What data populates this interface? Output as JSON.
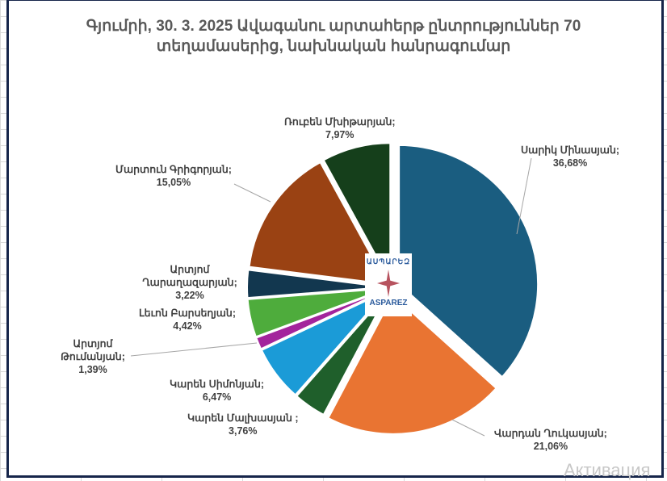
{
  "chart_data": {
    "type": "pie",
    "title": "Գյումրի, 30. 3. 2025 Ավագանու արտահերթ ընտրություններ 70 տեղամասերից, նախնական հանրագումար",
    "slices": [
      {
        "name": "Սարիկ Մինասյան",
        "value": 36.68,
        "label": "36,68%",
        "color": "#1a5d80"
      },
      {
        "name": "Վարդան Ղուկասյան",
        "value": 21.06,
        "label": "21,06%",
        "color": "#e97432"
      },
      {
        "name": "Կարեն Մալխասյան ",
        "value": 3.76,
        "label": "3,76%",
        "color": "#1f5f2b"
      },
      {
        "name": "Կարեն Սիմոնյան",
        "value": 6.47,
        "label": "6,47%",
        "color": "#1b9bd7"
      },
      {
        "name": "Արտյոմ Թումանյան",
        "value": 1.39,
        "label": "1,39%",
        "color": "#a3249c"
      },
      {
        "name": "Լեւոն Բարսեղյան",
        "value": 4.42,
        "label": "4,42%",
        "color": "#4eac3c"
      },
      {
        "name": "Արտյոմ Ղարաղազարյան",
        "value": 3.22,
        "label": "3,22%",
        "color": "#12374f"
      },
      {
        "name": "Մարտուն Գրիգորյան",
        "value": 15.05,
        "label": "15,05%",
        "color": "#9a4213"
      },
      {
        "name": "Ռուբեն Մխիթարյան",
        "value": 7.97,
        "label": "7,97%",
        "color": "#153f1b"
      }
    ],
    "legend": "none"
  },
  "logo": {
    "armenian": "ԱՍՊԱՐԵԶ",
    "latin": "ASPAREZ"
  },
  "watermark": "Активация"
}
